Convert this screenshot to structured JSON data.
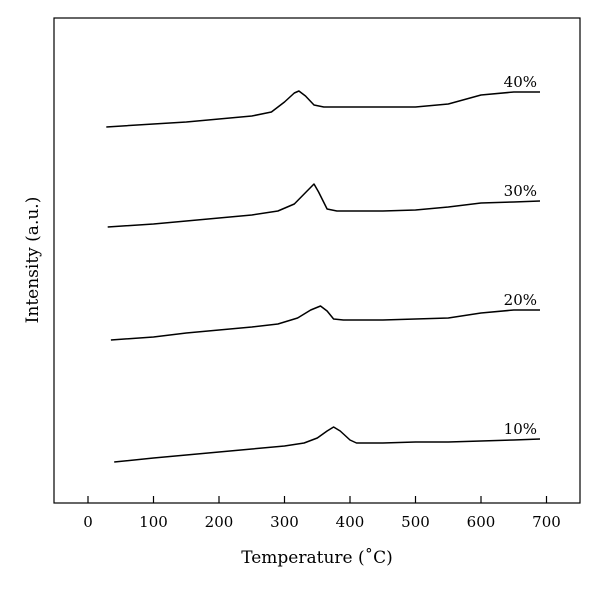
{
  "chart_data": {
    "type": "line",
    "title": "",
    "xlabel": "Temperature (˚C)",
    "ylabel": "Intensity (a.u.)",
    "xlim": [
      -50,
      750
    ],
    "xticks": [
      0,
      100,
      200,
      300,
      400,
      500,
      600,
      700
    ],
    "yticks": [],
    "grid": false,
    "legend": "none",
    "line_color": "#000000",
    "series": [
      {
        "name": "10%",
        "x": [
          40,
          100,
          150,
          200,
          250,
          300,
          330,
          350,
          365,
          375,
          385,
          400,
          410,
          450,
          500,
          550,
          600,
          650,
          690
        ],
        "y": [
          0.0,
          0.04,
          0.07,
          0.1,
          0.13,
          0.16,
          0.19,
          0.24,
          0.31,
          0.35,
          0.31,
          0.22,
          0.19,
          0.19,
          0.2,
          0.2,
          0.21,
          0.22,
          0.23
        ]
      },
      {
        "name": "20%",
        "x": [
          35,
          100,
          150,
          200,
          250,
          290,
          320,
          340,
          355,
          365,
          375,
          390,
          450,
          500,
          550,
          600,
          650,
          690
        ],
        "y": [
          0.0,
          0.03,
          0.07,
          0.1,
          0.13,
          0.16,
          0.22,
          0.3,
          0.34,
          0.29,
          0.21,
          0.2,
          0.2,
          0.21,
          0.22,
          0.27,
          0.3,
          0.3
        ]
      },
      {
        "name": "30%",
        "x": [
          30,
          100,
          150,
          200,
          250,
          290,
          315,
          333,
          345,
          352,
          365,
          380,
          450,
          500,
          550,
          600,
          650,
          690
        ],
        "y": [
          0.0,
          0.03,
          0.06,
          0.09,
          0.12,
          0.16,
          0.23,
          0.35,
          0.43,
          0.35,
          0.18,
          0.16,
          0.16,
          0.17,
          0.2,
          0.24,
          0.25,
          0.26
        ]
      },
      {
        "name": "40%",
        "x": [
          28,
          100,
          150,
          200,
          250,
          280,
          300,
          315,
          322,
          332,
          345,
          360,
          450,
          500,
          550,
          600,
          650,
          690
        ],
        "y": [
          0.0,
          0.03,
          0.05,
          0.08,
          0.11,
          0.15,
          0.25,
          0.34,
          0.36,
          0.31,
          0.22,
          0.2,
          0.2,
          0.2,
          0.23,
          0.32,
          0.35,
          0.35
        ]
      }
    ]
  }
}
